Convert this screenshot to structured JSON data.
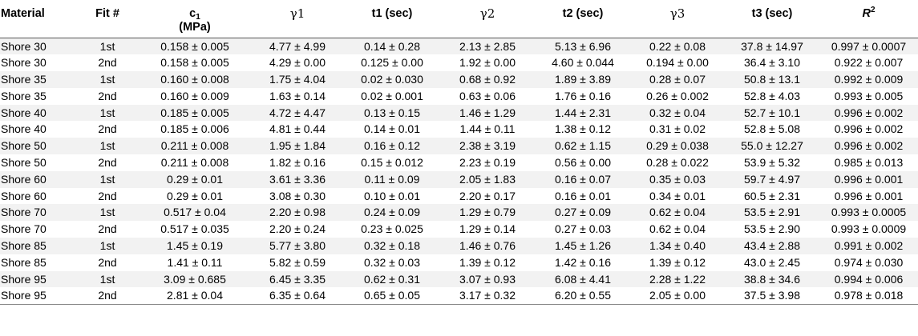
{
  "headers": {
    "material": "Material",
    "fit": "Fit #",
    "c1_main": "c",
    "c1_sub": "1",
    "c1_unit": "(MPa)",
    "g1": "γ1",
    "t1": "t1 (sec)",
    "g2": "γ2",
    "t2": "t2 (sec)",
    "g3": "γ3",
    "t3": "t3 (sec)",
    "r2_main": "R",
    "r2_sup": "2"
  },
  "rows": [
    [
      "Shore 30",
      "1st",
      "0.158 ± 0.005",
      "4.77 ± 4.99",
      "0.14 ± 0.28",
      "2.13 ± 2.85",
      "5.13 ± 6.96",
      "0.22 ± 0.08",
      "37.8 ± 14.97",
      "0.997 ± 0.0007"
    ],
    [
      "Shore 30",
      "2nd",
      "0.158 ± 0.005",
      "4.29 ± 0.00",
      "0.125 ± 0.00",
      "1.92 ± 0.00",
      "4.60 ± 0.044",
      "0.194 ± 0.00",
      "36.4 ± 3.10",
      "0.922 ± 0.007"
    ],
    [
      "Shore 35",
      "1st",
      "0.160 ± 0.008",
      "1.75 ± 4.04",
      "0.02 ± 0.030",
      "0.68 ± 0.92",
      "1.89 ± 3.89",
      "0.28 ± 0.07",
      "50.8 ± 13.1",
      "0.992 ± 0.009"
    ],
    [
      "Shore 35",
      "2nd",
      "0.160 ± 0.009",
      "1.63 ± 0.14",
      "0.02 ± 0.001",
      "0.63 ± 0.06",
      "1.76 ± 0.16",
      "0.26 ± 0.002",
      "52.8 ± 4.03",
      "0.993 ± 0.005"
    ],
    [
      "Shore 40",
      "1st",
      "0.185 ± 0.005",
      "4.72 ± 4.47",
      "0.13 ± 0.15",
      "1.46 ± 1.29",
      "1.44 ± 2.31",
      "0.32 ± 0.04",
      "52.7 ± 10.1",
      "0.996 ± 0.002"
    ],
    [
      "Shore 40",
      "2nd",
      "0.185 ± 0.006",
      "4.81 ± 0.44",
      "0.14 ± 0.01",
      "1.44 ± 0.11",
      "1.38 ± 0.12",
      "0.31 ± 0.02",
      "52.8 ± 5.08",
      "0.996 ± 0.002"
    ],
    [
      "Shore 50",
      "1st",
      "0.211 ± 0.008",
      "1.95 ± 1.84",
      "0.16 ± 0.12",
      "2.38 ± 3.19",
      "0.62 ± 1.15",
      "0.29 ± 0.038",
      "55.0 ± 12.27",
      "0.996 ± 0.002"
    ],
    [
      "Shore 50",
      "2nd",
      "0.211 ± 0.008",
      "1.82 ± 0.16",
      "0.15 ± 0.012",
      "2.23 ± 0.19",
      "0.56 ± 0.00",
      "0.28 ± 0.022",
      "53.9 ± 5.32",
      "0.985 ± 0.013"
    ],
    [
      "Shore 60",
      "1st",
      "0.29 ± 0.01",
      "3.61 ± 3.36",
      "0.11 ± 0.09",
      "2.05 ± 1.83",
      "0.16 ± 0.07",
      "0.35 ± 0.03",
      "59.7 ± 4.97",
      "0.996 ± 0.001"
    ],
    [
      "Shore 60",
      "2nd",
      "0.29 ± 0.01",
      "3.08 ± 0.30",
      "0.10 ± 0.01",
      "2.20 ± 0.17",
      "0.16 ± 0.01",
      "0.34 ± 0.01",
      "60.5 ± 2.31",
      "0.996 ± 0.001"
    ],
    [
      "Shore 70",
      "1st",
      "0.517 ± 0.04",
      "2.20 ± 0.98",
      "0.24 ± 0.09",
      "1.29 ± 0.79",
      "0.27 ± 0.09",
      "0.62 ± 0.04",
      "53.5 ± 2.91",
      "0.993 ± 0.0005"
    ],
    [
      "Shore 70",
      "2nd",
      "0.517 ± 0.035",
      "2.20 ± 0.24",
      "0.23 ± 0.025",
      "1.29 ± 0.14",
      "0.27 ± 0.03",
      "0.62 ± 0.04",
      "53.5 ± 2.90",
      "0.993 ± 0.0009"
    ],
    [
      "Shore 85",
      "1st",
      "1.45 ± 0.19",
      "5.77 ± 3.80",
      "0.32 ± 0.18",
      "1.46 ± 0.76",
      "1.45 ± 1.26",
      "1.34 ± 0.40",
      "43.4 ± 2.88",
      "0.991 ± 0.002"
    ],
    [
      "Shore 85",
      "2nd",
      "1.41 ± 0.11",
      "5.82 ± 0.59",
      "0.32 ± 0.03",
      "1.39 ± 0.12",
      "1.42 ± 0.16",
      "1.39 ± 0.12",
      "43.0 ± 2.45",
      "0.974 ± 0.030"
    ],
    [
      "Shore 95",
      "1st",
      "3.09 ± 0.685",
      "6.45 ± 3.35",
      "0.62 ± 0.31",
      "3.07 ± 0.93",
      "6.08 ± 4.41",
      "2.28 ± 1.22",
      "38.8 ± 34.6",
      "0.994 ± 0.006"
    ],
    [
      "Shore 95",
      "2nd",
      "2.81 ± 0.04",
      "6.35 ± 0.64",
      "0.65 ± 0.05",
      "3.17 ± 0.32",
      "6.20 ± 0.55",
      "2.05 ± 0.00",
      "37.5 ± 3.98",
      "0.978 ± 0.018"
    ]
  ]
}
